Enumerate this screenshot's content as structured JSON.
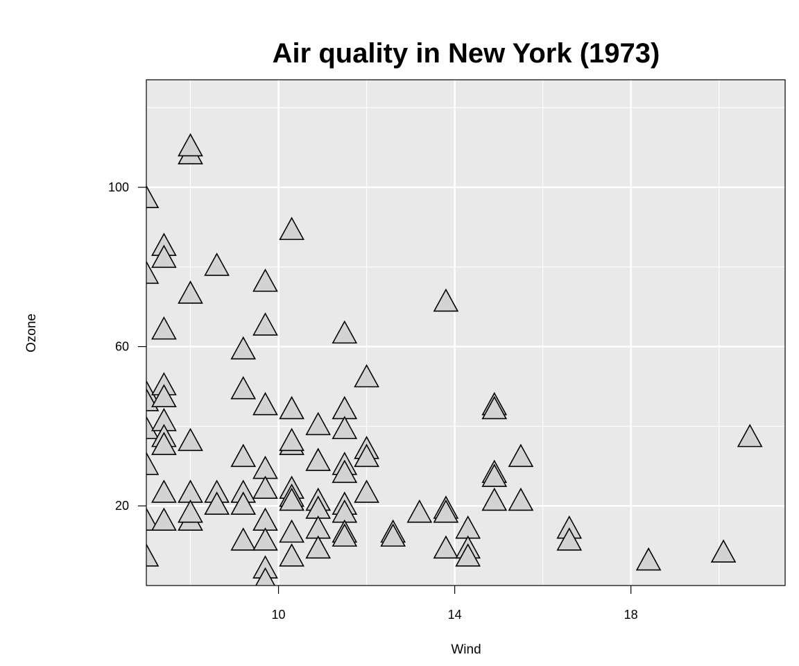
{
  "chart_data": {
    "type": "scatter",
    "title": "Air quality in New York (1973)",
    "xlabel": "Wind",
    "ylabel": "Ozone",
    "xlim": [
      7,
      21.5
    ],
    "ylim": [
      0,
      127
    ],
    "x_ticks": [
      10,
      14,
      18
    ],
    "y_ticks": [
      20,
      60,
      100
    ],
    "x_tick_labels": [
      "10",
      "14",
      "18"
    ],
    "y_tick_labels": [
      "20",
      "60",
      "100"
    ],
    "grid": true,
    "marker": "triangle",
    "colors": {
      "panel_background": "#e9e9e9",
      "grid_major": "#ffffff",
      "grid_minor": "#ffffff",
      "marker_fill": "#d3d3d3",
      "marker_stroke": "#000000"
    },
    "points": [
      {
        "x": 7.0,
        "y": 97
      },
      {
        "x": 7.0,
        "y": 78
      },
      {
        "x": 7.0,
        "y": 48
      },
      {
        "x": 7.0,
        "y": 46
      },
      {
        "x": 7.0,
        "y": 39
      },
      {
        "x": 7.0,
        "y": 30
      },
      {
        "x": 7.0,
        "y": 16
      },
      {
        "x": 7.0,
        "y": 7
      },
      {
        "x": 7.4,
        "y": 85
      },
      {
        "x": 7.4,
        "y": 82
      },
      {
        "x": 7.4,
        "y": 64
      },
      {
        "x": 7.4,
        "y": 50
      },
      {
        "x": 7.4,
        "y": 47
      },
      {
        "x": 7.4,
        "y": 41
      },
      {
        "x": 7.4,
        "y": 37
      },
      {
        "x": 7.4,
        "y": 35
      },
      {
        "x": 7.4,
        "y": 23
      },
      {
        "x": 7.4,
        "y": 16
      },
      {
        "x": 8.0,
        "y": 108
      },
      {
        "x": 8.0,
        "y": 110
      },
      {
        "x": 8.0,
        "y": 73
      },
      {
        "x": 8.0,
        "y": 36
      },
      {
        "x": 8.0,
        "y": 23
      },
      {
        "x": 8.0,
        "y": 16
      },
      {
        "x": 8.0,
        "y": 18
      },
      {
        "x": 8.6,
        "y": 80
      },
      {
        "x": 8.6,
        "y": 23
      },
      {
        "x": 8.6,
        "y": 20
      },
      {
        "x": 9.2,
        "y": 59
      },
      {
        "x": 9.2,
        "y": 49
      },
      {
        "x": 9.2,
        "y": 32
      },
      {
        "x": 9.2,
        "y": 23
      },
      {
        "x": 9.2,
        "y": 20
      },
      {
        "x": 9.2,
        "y": 11
      },
      {
        "x": 9.7,
        "y": 76
      },
      {
        "x": 9.7,
        "y": 65
      },
      {
        "x": 9.7,
        "y": 45
      },
      {
        "x": 9.7,
        "y": 29
      },
      {
        "x": 9.7,
        "y": 24
      },
      {
        "x": 9.7,
        "y": 16
      },
      {
        "x": 9.7,
        "y": 11
      },
      {
        "x": 9.7,
        "y": 4
      },
      {
        "x": 9.7,
        "y": 1
      },
      {
        "x": 10.3,
        "y": 89
      },
      {
        "x": 10.3,
        "y": 44
      },
      {
        "x": 10.3,
        "y": 35
      },
      {
        "x": 10.3,
        "y": 36
      },
      {
        "x": 10.3,
        "y": 24
      },
      {
        "x": 10.3,
        "y": 22
      },
      {
        "x": 10.3,
        "y": 21
      },
      {
        "x": 10.3,
        "y": 13
      },
      {
        "x": 10.3,
        "y": 7
      },
      {
        "x": 10.9,
        "y": 40
      },
      {
        "x": 10.9,
        "y": 31
      },
      {
        "x": 10.9,
        "y": 21
      },
      {
        "x": 10.9,
        "y": 19
      },
      {
        "x": 10.9,
        "y": 14
      },
      {
        "x": 10.9,
        "y": 9
      },
      {
        "x": 11.5,
        "y": 63
      },
      {
        "x": 11.5,
        "y": 44
      },
      {
        "x": 11.5,
        "y": 39
      },
      {
        "x": 11.5,
        "y": 30
      },
      {
        "x": 11.5,
        "y": 28
      },
      {
        "x": 11.5,
        "y": 20
      },
      {
        "x": 11.5,
        "y": 18
      },
      {
        "x": 11.5,
        "y": 13
      },
      {
        "x": 11.5,
        "y": 12
      },
      {
        "x": 12.0,
        "y": 52
      },
      {
        "x": 12.0,
        "y": 34
      },
      {
        "x": 12.0,
        "y": 32
      },
      {
        "x": 12.0,
        "y": 23
      },
      {
        "x": 12.6,
        "y": 13
      },
      {
        "x": 12.6,
        "y": 12
      },
      {
        "x": 13.2,
        "y": 18
      },
      {
        "x": 13.8,
        "y": 71
      },
      {
        "x": 13.8,
        "y": 19
      },
      {
        "x": 13.8,
        "y": 18
      },
      {
        "x": 13.8,
        "y": 9
      },
      {
        "x": 14.3,
        "y": 14
      },
      {
        "x": 14.3,
        "y": 9
      },
      {
        "x": 14.3,
        "y": 7
      },
      {
        "x": 14.9,
        "y": 45
      },
      {
        "x": 14.9,
        "y": 44
      },
      {
        "x": 14.9,
        "y": 28
      },
      {
        "x": 14.9,
        "y": 27
      },
      {
        "x": 14.9,
        "y": 21
      },
      {
        "x": 15.5,
        "y": 32
      },
      {
        "x": 15.5,
        "y": 21
      },
      {
        "x": 16.6,
        "y": 14
      },
      {
        "x": 16.6,
        "y": 11
      },
      {
        "x": 18.4,
        "y": 6
      },
      {
        "x": 20.1,
        "y": 8
      },
      {
        "x": 20.7,
        "y": 37
      }
    ]
  }
}
